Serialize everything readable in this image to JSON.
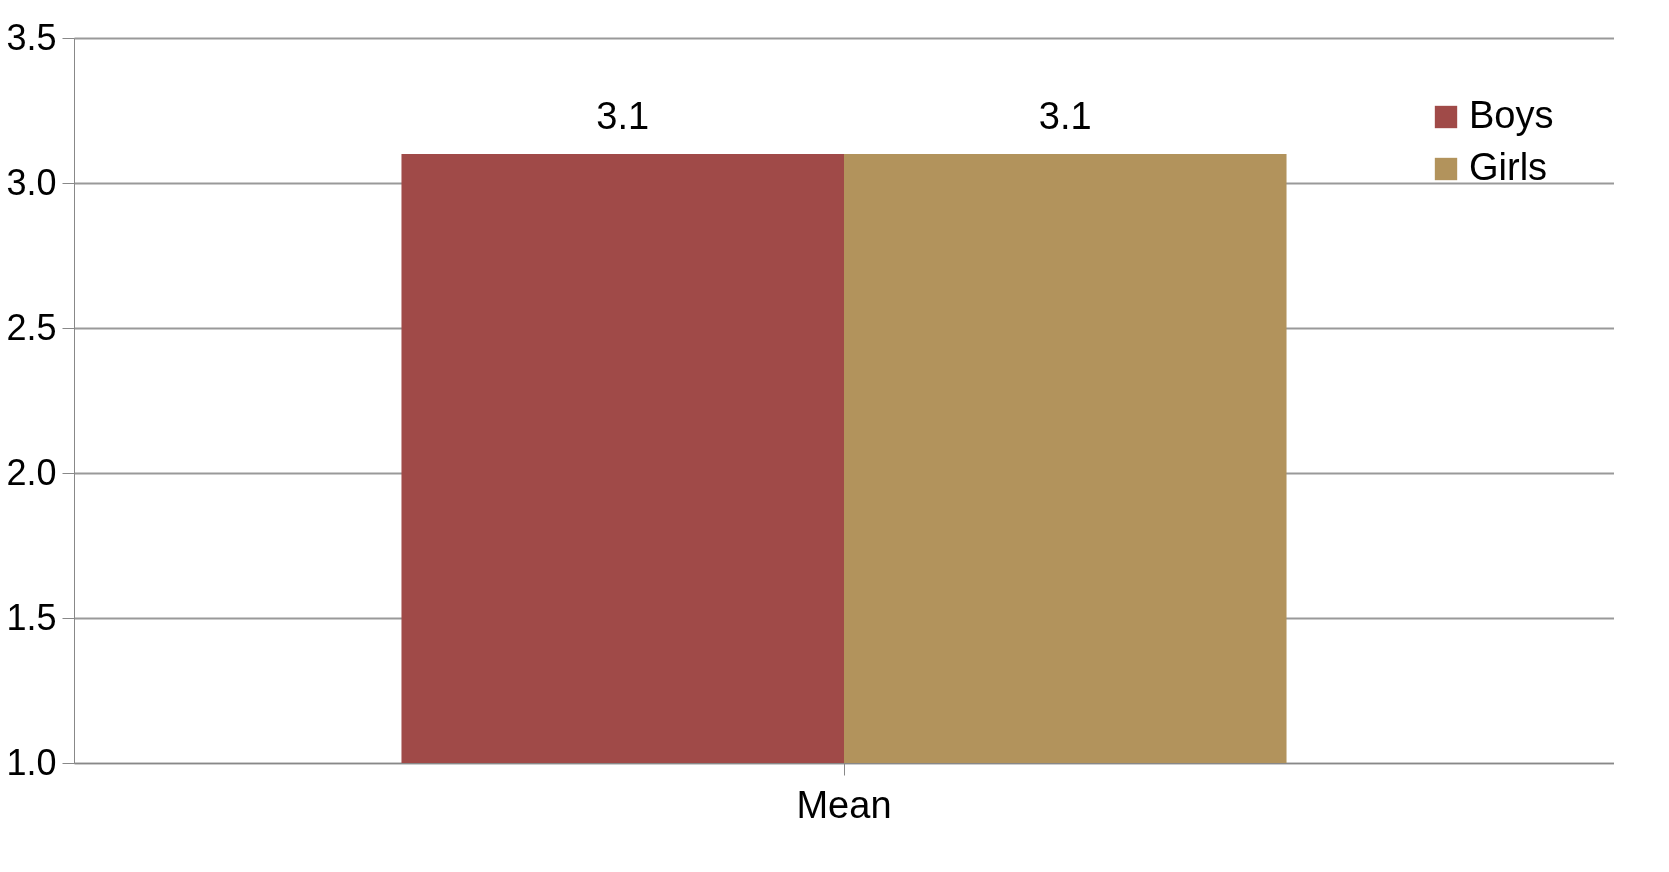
{
  "chart_data": {
    "type": "bar",
    "categories": [
      "Mean"
    ],
    "series": [
      {
        "name": "Boys",
        "color": "#a04a48",
        "values": [
          3.1
        ]
      },
      {
        "name": "Girls",
        "color": "#b2935c",
        "values": [
          3.1
        ]
      }
    ],
    "ylim": [
      1,
      3.5
    ],
    "yticks": [
      {
        "value": 1,
        "label": "1.0"
      },
      {
        "value": 1.5,
        "label": "1.5"
      },
      {
        "value": 2,
        "label": "2.0"
      },
      {
        "value": 2.5,
        "label": "2.5"
      },
      {
        "value": 3,
        "label": "3.0"
      },
      {
        "value": 3.5,
        "label": "3.5"
      }
    ],
    "data_labels": true,
    "grid": "y",
    "legend": "top right"
  }
}
